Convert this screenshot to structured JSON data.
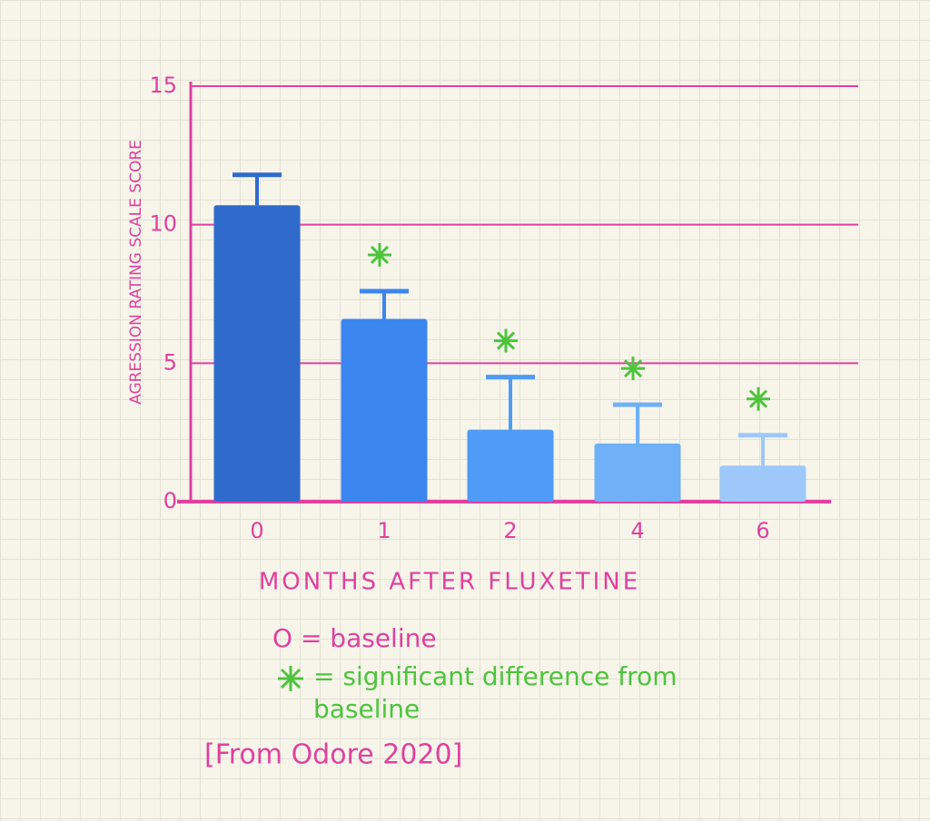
{
  "chart_data": {
    "type": "bar",
    "y_label": "AGRESSION RATING SCALE SCORE",
    "x_label": "MONTHS AFTER FLUXETINE",
    "categories": [
      "0",
      "1",
      "2",
      "4",
      "6"
    ],
    "values": [
      10.7,
      6.6,
      2.6,
      2.1,
      1.3
    ],
    "errors": [
      1.1,
      1.0,
      1.9,
      1.4,
      1.1
    ],
    "colors": [
      "#2f6bcc",
      "#3b86ee",
      "#4f9bf5",
      "#6fb0f7",
      "#9dc8f9"
    ],
    "significant": [
      false,
      true,
      true,
      true,
      true
    ],
    "ylim": [
      0,
      15
    ],
    "yticks": [
      0,
      5,
      10,
      15
    ],
    "grid": true,
    "notes": {
      "baseline": "O = baseline",
      "significance": "= significant difference from baseline",
      "source": "[From Odore 2020]"
    }
  }
}
